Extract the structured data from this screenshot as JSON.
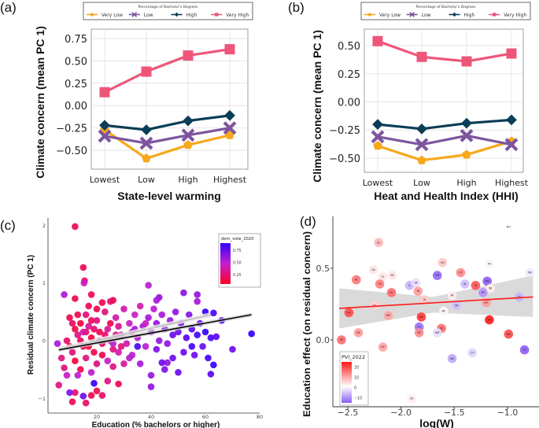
{
  "panel_labels": [
    "(a)",
    "(b)",
    "(c)",
    "(d)"
  ],
  "colors": {
    "Very Low": "#f7a81b",
    "Low": "#7d559e",
    "High": "#0b3d57",
    "Very High": "#ee5679",
    "regression_c": "#000000",
    "smooth_c": "#bdbdbd",
    "regression_d": "#ff1a1a",
    "ci_band": "#d3d3d3"
  },
  "chart_data": [
    {
      "type": "line",
      "panel": "(a)",
      "legend_title": "Percentage of Bachelor's Degrees",
      "legend_placement": "top",
      "categories": [
        "Lowest",
        "Low",
        "High",
        "Highest"
      ],
      "xlabel": "State-level warming",
      "ylabel": "Climate concern (mean PC 1)",
      "yticks": [
        "0.75",
        "0.50",
        "0.25",
        "0.00",
        "−0.25",
        "−0.50"
      ],
      "ytick_values": [
        0.75,
        0.5,
        0.25,
        0,
        -0.25,
        -0.5
      ],
      "ylim": [
        -0.71,
        0.855
      ],
      "grid": true,
      "series": [
        {
          "name": "Very Low",
          "marker": "pentagon",
          "values": [
            -0.27,
            -0.59,
            -0.44,
            -0.33
          ]
        },
        {
          "name": "Low",
          "marker": "x",
          "values": [
            -0.34,
            -0.42,
            -0.33,
            -0.25
          ]
        },
        {
          "name": "High",
          "marker": "diamond",
          "values": [
            -0.22,
            -0.27,
            -0.17,
            -0.11
          ]
        },
        {
          "name": "Very High",
          "marker": "square",
          "values": [
            0.15,
            0.38,
            0.56,
            0.63
          ]
        }
      ]
    },
    {
      "type": "line",
      "panel": "(b)",
      "legend_title": "Percentage of Bachelor's Degrees",
      "legend_placement": "top",
      "categories": [
        "Lowest",
        "Low",
        "High",
        "Highest"
      ],
      "xlabel": "Heat and Health Index (HHI)",
      "ylabel": "Climate concern (mean PC 1)",
      "yticks": [
        "0.50",
        "0.25",
        "0.00",
        "−0.25",
        "−0.50"
      ],
      "ytick_values": [
        0.5,
        0.25,
        0,
        -0.25,
        -0.5
      ],
      "ylim": [
        -0.626,
        0.647
      ],
      "grid": true,
      "series": [
        {
          "name": "Very Low",
          "marker": "pentagon",
          "values": [
            -0.39,
            -0.52,
            -0.47,
            -0.35
          ]
        },
        {
          "name": "Low",
          "marker": "x",
          "values": [
            -0.31,
            -0.38,
            -0.3,
            -0.38
          ]
        },
        {
          "name": "High",
          "marker": "diamond",
          "values": [
            -0.2,
            -0.24,
            -0.19,
            -0.16
          ]
        },
        {
          "name": "Very High",
          "marker": "square",
          "values": [
            0.54,
            0.4,
            0.36,
            0.43
          ]
        }
      ]
    },
    {
      "type": "scatter",
      "panel": "(c)",
      "xlabel": "Education (% bachelors or higher)",
      "ylabel": "Residual climate concern (PC 1)",
      "xticks": [
        "20",
        "40",
        "60",
        "80"
      ],
      "xtick_values": [
        20,
        40,
        60,
        80
      ],
      "yticks": [
        "2",
        "1",
        "0",
        "−1"
      ],
      "ytick_values": [
        2,
        1,
        0,
        -1
      ],
      "xlim": [
        2,
        80
      ],
      "ylim": [
        -1.25,
        2.1
      ],
      "grid": false,
      "legend": {
        "title": "dem_vote_2020",
        "placement": "top-right",
        "ticks": [
          "0.75",
          "0.50",
          "0.25"
        ],
        "tick_values": [
          0.75,
          0.5,
          0.25
        ],
        "low_color": "#ff0022",
        "high_color": "#3300ff"
      },
      "regression_line": {
        "x": [
          6,
          77
        ],
        "y": [
          -0.16,
          0.45
        ]
      },
      "smooth_line": {
        "x": [
          6,
          62
        ],
        "y": [
          -0.15,
          0.45
        ]
      },
      "points_fields": [
        "education",
        "residual",
        "dem_vote_2020"
      ],
      "points": [
        [
          12,
          1.98,
          0.22
        ],
        [
          15,
          1.27,
          0.2
        ],
        [
          15.5,
          1.04,
          0.25
        ],
        [
          15.3,
          1.0,
          0.45
        ],
        [
          8,
          0.8,
          0.55
        ],
        [
          18,
          0.8,
          0.2
        ],
        [
          12,
          0.73,
          0.2
        ],
        [
          39,
          0.96,
          0.5
        ],
        [
          52,
          0.83,
          0.62
        ],
        [
          57,
          0.8,
          0.6
        ],
        [
          43,
          0.75,
          0.6
        ],
        [
          42,
          0.7,
          0.55
        ],
        [
          26,
          0.7,
          0.2
        ],
        [
          25,
          0.68,
          0.25
        ],
        [
          22,
          0.66,
          0.2
        ],
        [
          17,
          0.6,
          0.2
        ],
        [
          57,
          0.68,
          0.55
        ],
        [
          10,
          0.4,
          0.2
        ],
        [
          11,
          0.3,
          0.25
        ],
        [
          12,
          0.2,
          0.18
        ],
        [
          13,
          0.1,
          0.3
        ],
        [
          14,
          0.0,
          0.2
        ],
        [
          15,
          -0.1,
          0.22
        ],
        [
          16,
          0.45,
          0.28
        ],
        [
          17,
          0.25,
          0.35
        ],
        [
          18,
          0.05,
          0.15
        ],
        [
          19,
          -0.2,
          0.2
        ],
        [
          20,
          0.35,
          0.3
        ],
        [
          21,
          0.15,
          0.2
        ],
        [
          22,
          -0.05,
          0.25
        ],
        [
          23,
          0.5,
          0.3
        ],
        [
          24,
          0.2,
          0.35
        ],
        [
          25,
          0.0,
          0.2
        ],
        [
          26,
          -0.15,
          0.3
        ],
        [
          27,
          0.4,
          0.4
        ],
        [
          28,
          0.25,
          0.35
        ],
        [
          29,
          0.1,
          0.45
        ],
        [
          30,
          0.55,
          0.4
        ],
        [
          31,
          -0.05,
          0.4
        ],
        [
          32,
          0.3,
          0.45
        ],
        [
          33,
          0.15,
          0.5
        ],
        [
          34,
          0.45,
          0.45
        ],
        [
          35,
          0.05,
          0.5
        ],
        [
          36,
          0.6,
          0.4
        ],
        [
          37,
          0.25,
          0.55
        ],
        [
          38,
          -0.1,
          0.5
        ],
        [
          39,
          0.4,
          0.55
        ],
        [
          40,
          0.15,
          0.6
        ],
        [
          41,
          0.55,
          0.5
        ],
        [
          42,
          0.3,
          0.6
        ],
        [
          43,
          0.0,
          0.6
        ],
        [
          44,
          0.45,
          0.55
        ],
        [
          45,
          0.2,
          0.65
        ],
        [
          46,
          -0.05,
          0.6
        ],
        [
          47,
          0.35,
          0.6
        ],
        [
          48,
          0.1,
          0.7
        ],
        [
          49,
          0.5,
          0.6
        ],
        [
          50,
          0.15,
          0.7
        ],
        [
          51,
          0.3,
          0.65
        ],
        [
          52,
          -0.2,
          0.7
        ],
        [
          53,
          0.05,
          0.75
        ],
        [
          54,
          0.45,
          0.65
        ],
        [
          55,
          0.2,
          0.75
        ],
        [
          56,
          -0.25,
          0.7
        ],
        [
          57,
          0.1,
          0.8
        ],
        [
          60,
          0.5,
          0.85
        ],
        [
          60,
          0.15,
          0.9
        ],
        [
          62,
          0.05,
          0.8
        ],
        [
          63,
          0.48,
          0.8
        ],
        [
          66,
          0.35,
          0.75
        ],
        [
          64,
          0.07,
          0.75
        ],
        [
          77,
          0.12,
          0.9
        ],
        [
          70,
          -0.15,
          0.7
        ],
        [
          59,
          -0.1,
          0.7
        ],
        [
          61,
          -0.3,
          0.8
        ],
        [
          62,
          -0.58,
          0.75
        ],
        [
          63,
          -0.42,
          0.85
        ],
        [
          50,
          -0.55,
          0.7
        ],
        [
          46,
          -0.38,
          0.6
        ],
        [
          45,
          -0.5,
          0.65
        ],
        [
          40,
          -0.6,
          0.6
        ],
        [
          40,
          -0.8,
          0.6
        ],
        [
          44,
          -0.38,
          0.7
        ],
        [
          36,
          -0.4,
          0.55
        ],
        [
          28,
          -0.75,
          0.2
        ],
        [
          22,
          -0.95,
          0.25
        ],
        [
          20,
          -0.87,
          0.2
        ],
        [
          18,
          -0.95,
          0.2
        ],
        [
          16,
          -1.08,
          0.25
        ],
        [
          15,
          -0.96,
          0.7
        ],
        [
          11,
          -1.06,
          0.22
        ],
        [
          12,
          -0.9,
          0.25
        ],
        [
          10,
          -0.9,
          0.65
        ],
        [
          6,
          -0.77,
          0.3
        ],
        [
          9,
          -0.6,
          0.45
        ],
        [
          8,
          -0.47,
          0.3
        ],
        [
          7,
          -0.3,
          0.3
        ],
        [
          5.5,
          -0.05,
          0.55
        ],
        [
          19,
          -0.74,
          0.85
        ],
        [
          13,
          -0.6,
          0.5
        ],
        [
          24,
          -0.7,
          0.3
        ],
        [
          26,
          -0.45,
          0.3
        ],
        [
          30,
          -0.4,
          0.35
        ],
        [
          33,
          -0.25,
          0.5
        ],
        [
          35,
          -0.1,
          0.8
        ],
        [
          10,
          -0.1,
          0.2
        ],
        [
          12,
          -0.35,
          0.15
        ],
        [
          14,
          -0.5,
          0.2
        ],
        [
          16,
          -0.3,
          0.3
        ],
        [
          18,
          -0.55,
          0.5
        ],
        [
          20,
          -0.4,
          0.3
        ],
        [
          22,
          -0.25,
          0.2
        ],
        [
          24,
          -0.35,
          0.45
        ],
        [
          26,
          -0.05,
          0.5
        ],
        [
          28,
          -0.2,
          0.4
        ],
        [
          13,
          0.45,
          0.2
        ],
        [
          14,
          0.3,
          0.15
        ],
        [
          16,
          0.15,
          0.2
        ],
        [
          18,
          0.35,
          0.22
        ],
        [
          20,
          0.55,
          0.2
        ],
        [
          21,
          0.0,
          0.4
        ],
        [
          23,
          0.1,
          0.25
        ],
        [
          25,
          0.3,
          0.2
        ],
        [
          27,
          0.1,
          0.3
        ],
        [
          29,
          -0.1,
          0.3
        ],
        [
          9,
          0.0,
          0.25
        ],
        [
          11,
          -0.2,
          0.3
        ],
        [
          17,
          -0.1,
          0.15
        ],
        [
          19,
          0.2,
          0.25
        ],
        [
          15,
          0.15,
          0.4
        ],
        [
          32,
          -0.3,
          0.5
        ],
        [
          34,
          0.2,
          0.55
        ],
        [
          38,
          0.3,
          0.45
        ],
        [
          42,
          -0.15,
          0.65
        ],
        [
          48,
          -0.3,
          0.7
        ],
        [
          55,
          -0.1,
          0.8
        ],
        [
          58,
          0.3,
          0.7
        ]
      ]
    },
    {
      "type": "scatter",
      "panel": "(d)",
      "xlabel": "log(W)",
      "ylabel": "Education effect (on residual concern)",
      "xticks": [
        "−2.5",
        "−2.0",
        "−1.5",
        "−1.0"
      ],
      "xtick_values": [
        -2.5,
        -2.0,
        -1.5,
        -1.0
      ],
      "yticks": [
        "0.5",
        "0.0"
      ],
      "ytick_values": [
        0.5,
        0.0
      ],
      "xlim": [
        -2.61,
        -0.68
      ],
      "ylim": [
        -0.47,
        0.86
      ],
      "grid": false,
      "legend": {
        "title": "PVI_2022",
        "placement": "bottom-left",
        "ticks": [
          "20",
          "10",
          "0",
          "−10"
        ],
        "tick_values": [
          20,
          10,
          0,
          -10
        ],
        "high_color": "#ff1a1a",
        "mid_color": "#ffffff",
        "low_color": "#8a5cf6"
      },
      "regression_line": {
        "x": [
          -2.58,
          -0.76
        ],
        "y": [
          0.22,
          0.3
        ]
      },
      "ci_band": {
        "x": [
          -2.58,
          -1.7,
          -0.76
        ],
        "lower": [
          0.08,
          0.19,
          0.16
        ],
        "upper": [
          0.36,
          0.3,
          0.45
        ]
      },
      "points": [
        {
          "state": "NH",
          "x": -0.99,
          "y": 0.79,
          "pvi": 0
        },
        {
          "state": "SC",
          "x": -2.21,
          "y": 0.68,
          "pvi": 8
        },
        {
          "state": "OH",
          "x": -1.61,
          "y": 0.54,
          "pvi": 6
        },
        {
          "state": "MI",
          "x": -1.17,
          "y": 0.53,
          "pvi": -1
        },
        {
          "state": "GA",
          "x": -2.26,
          "y": 0.49,
          "pvi": 3
        },
        {
          "state": "UT",
          "x": -1.44,
          "y": 0.47,
          "pvi": 13
        },
        {
          "state": "ME",
          "x": -0.79,
          "y": 0.47,
          "pvi": -2
        },
        {
          "state": "FL",
          "x": -2.17,
          "y": 0.44,
          "pvi": 3
        },
        {
          "state": "NC",
          "x": -2.08,
          "y": 0.45,
          "pvi": 3
        },
        {
          "state": "MD",
          "x": -1.66,
          "y": 0.45,
          "pvi": -14
        },
        {
          "state": "AL",
          "x": -2.42,
          "y": 0.42,
          "pvi": 15
        },
        {
          "state": "MA",
          "x": -1.19,
          "y": 0.41,
          "pvi": -15
        },
        {
          "state": "TN",
          "x": -2.2,
          "y": 0.39,
          "pvi": 14
        },
        {
          "state": "IL",
          "x": -1.92,
          "y": 0.38,
          "pvi": -7
        },
        {
          "state": "VA",
          "x": -1.86,
          "y": 0.4,
          "pvi": -3
        },
        {
          "state": "NJ",
          "x": -1.4,
          "y": 0.39,
          "pvi": -6
        },
        {
          "state": "ID",
          "x": -1.3,
          "y": 0.38,
          "pvi": 19
        },
        {
          "state": "WI",
          "x": -1.16,
          "y": 0.36,
          "pvi": 2
        },
        {
          "state": "NY",
          "x": -1.23,
          "y": 0.33,
          "pvi": -10
        },
        {
          "state": "KY",
          "x": -2.09,
          "y": 0.33,
          "pvi": 16
        },
        {
          "state": "IN",
          "x": -1.84,
          "y": 0.34,
          "pvi": 11
        },
        {
          "state": "PA",
          "x": -1.52,
          "y": 0.31,
          "pvi": 2
        },
        {
          "state": "CT",
          "x": -0.89,
          "y": 0.3,
          "pvi": -7
        },
        {
          "state": "IA",
          "x": -1.78,
          "y": 0.28,
          "pvi": 6
        },
        {
          "state": "MT",
          "x": -1.2,
          "y": 0.26,
          "pvi": 11
        },
        {
          "state": "OR",
          "x": -1.48,
          "y": 0.24,
          "pvi": -6
        },
        {
          "state": "TX",
          "x": -2.25,
          "y": 0.24,
          "pvi": 5
        },
        {
          "state": "OK",
          "x": -2.49,
          "y": 0.19,
          "pvi": 20
        },
        {
          "state": "NV",
          "x": -1.6,
          "y": 0.2,
          "pvi": 1
        },
        {
          "state": "MO",
          "x": -2.12,
          "y": 0.17,
          "pvi": 10
        },
        {
          "state": "WV",
          "x": -1.81,
          "y": 0.16,
          "pvi": 22
        },
        {
          "state": "WY",
          "x": -1.17,
          "y": 0.14,
          "pvi": 25
        },
        {
          "state": "CA",
          "x": -1.83,
          "y": 0.09,
          "pvi": -13
        },
        {
          "state": "SD",
          "x": -1.62,
          "y": 0.08,
          "pvi": 16
        },
        {
          "state": "NE",
          "x": -1.83,
          "y": 0.05,
          "pvi": 13
        },
        {
          "state": "NM",
          "x": -1.66,
          "y": 0.05,
          "pvi": -3
        },
        {
          "state": "MS",
          "x": -2.4,
          "y": 0.05,
          "pvi": 11
        },
        {
          "state": "ND",
          "x": -0.99,
          "y": 0.04,
          "pvi": 20
        },
        {
          "state": "AR",
          "x": -2.56,
          "y": 0.0,
          "pvi": 16
        },
        {
          "state": "KS",
          "x": -2.17,
          "y": -0.05,
          "pvi": 10
        },
        {
          "state": "VT",
          "x": -0.84,
          "y": -0.07,
          "pvi": -16
        },
        {
          "state": "CO",
          "x": -1.33,
          "y": -0.09,
          "pvi": -4
        },
        {
          "state": "WA",
          "x": -1.52,
          "y": -0.13,
          "pvi": -8
        },
        {
          "state": "AZ",
          "x": -1.9,
          "y": -0.41,
          "pvi": 2
        }
      ]
    }
  ]
}
